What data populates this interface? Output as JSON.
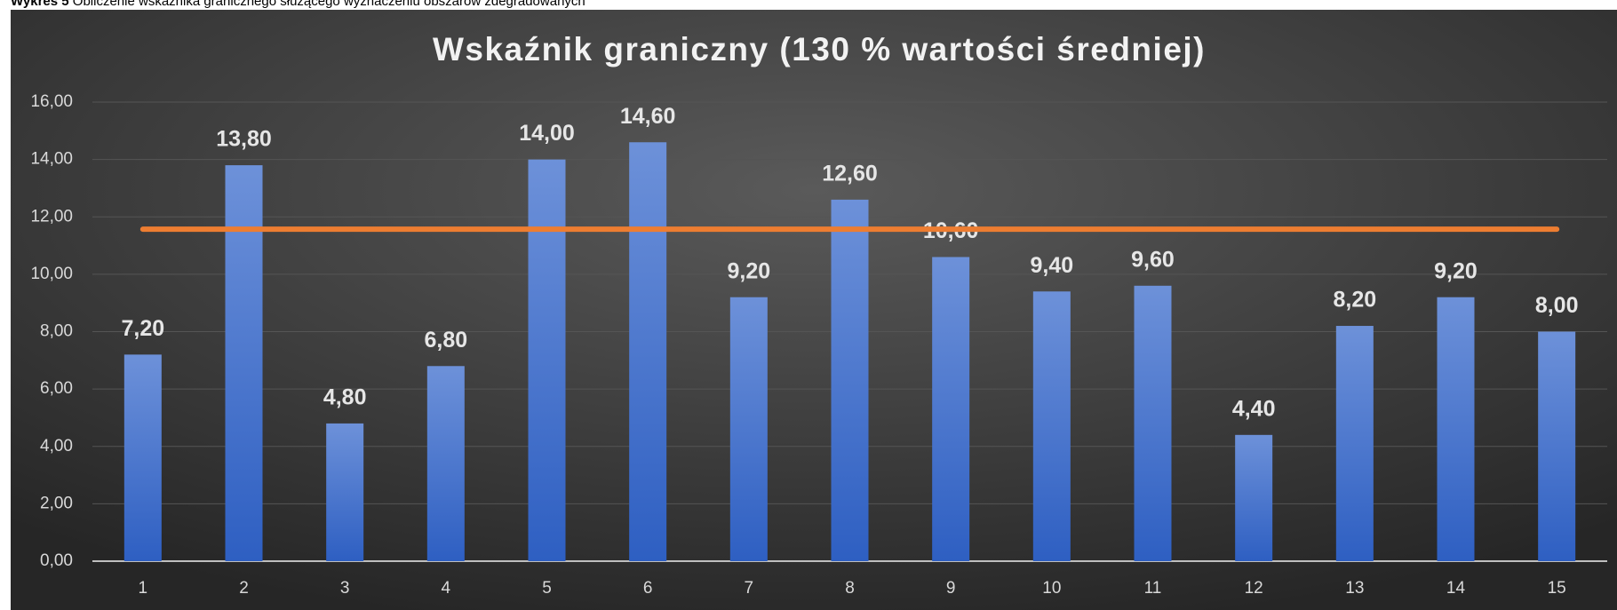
{
  "caption": {
    "label": "Wykres 5",
    "text": "Obliczenie wskaźnika granicznego służącego wyznaczeniu obszarów zdegradowanych"
  },
  "chart_data": {
    "type": "bar",
    "title": "Wskaźnik graniczny (130 % wartości średniej)",
    "categories": [
      "1",
      "2",
      "3",
      "4",
      "5",
      "6",
      "7",
      "8",
      "9",
      "10",
      "11",
      "12",
      "13",
      "14",
      "15"
    ],
    "values": [
      7.2,
      13.8,
      4.8,
      6.8,
      14,
      14.6,
      9.2,
      12.6,
      10.6,
      9.4,
      9.6,
      4.4,
      8.2,
      9.2,
      8
    ],
    "value_labels": [
      "7,20",
      "13,80",
      "4,80",
      "6,80",
      "14,00",
      "14,60",
      "9,20",
      "12,60",
      "10,60",
      "9,40",
      "9,60",
      "4,40",
      "8,20",
      "9,20",
      "8,00"
    ],
    "color": "#4a78d0",
    "line": {
      "type": "line",
      "color": "#ed7d31",
      "values": [
        11.57,
        11.57,
        11.57,
        11.57,
        11.57,
        11.57,
        11.57,
        11.57,
        11.57,
        11.57,
        11.57,
        11.57,
        11.57,
        11.57,
        11.57
      ]
    },
    "ylim": [
      0,
      16
    ],
    "yticks": [
      {
        "value": 0,
        "label": "0,00"
      },
      {
        "value": 2,
        "label": "2,00"
      },
      {
        "value": 4,
        "label": "4,00"
      },
      {
        "value": 6,
        "label": "6,00"
      },
      {
        "value": 8,
        "label": "8,00"
      },
      {
        "value": 10,
        "label": "10,00"
      },
      {
        "value": 12,
        "label": "12,00"
      },
      {
        "value": 14,
        "label": "14,00"
      },
      {
        "value": 16,
        "label": "16,00"
      }
    ],
    "grid": true
  }
}
